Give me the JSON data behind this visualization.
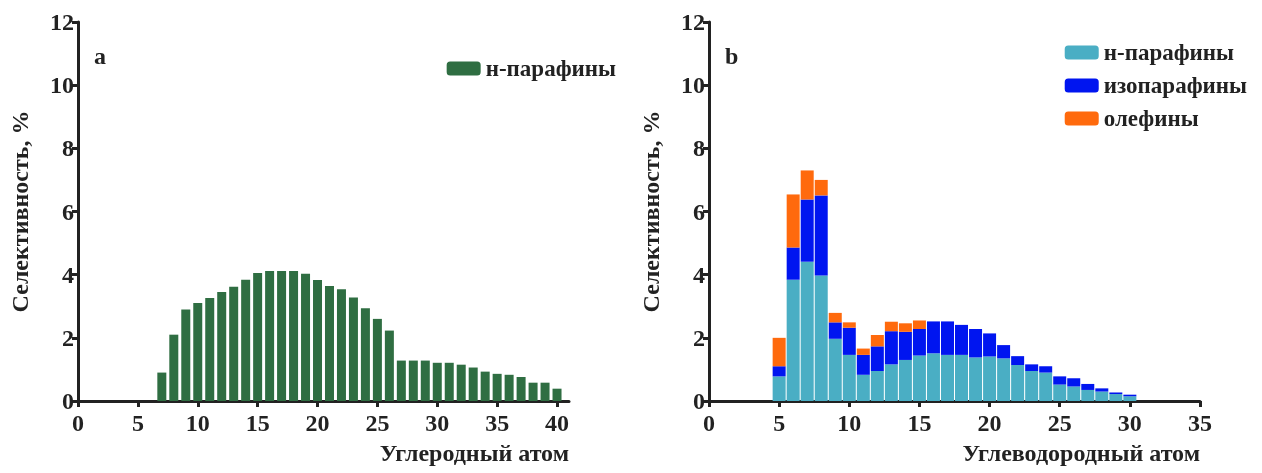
{
  "chart_data": [
    {
      "type": "bar",
      "xlabel": "Углеродный атом",
      "ylabel": "Селективность, %",
      "annotations": [
        "a"
      ],
      "xlim": [
        0,
        41
      ],
      "xticks": [
        0,
        5,
        10,
        15,
        20,
        25,
        30,
        35,
        40
      ],
      "ylim": [
        0,
        12
      ],
      "yticks": [
        0,
        2,
        4,
        6,
        8,
        10,
        12
      ],
      "legend": "top right",
      "grid": false,
      "x": [
        7,
        8,
        9,
        10,
        11,
        12,
        13,
        14,
        15,
        16,
        17,
        18,
        19,
        20,
        21,
        22,
        23,
        24,
        25,
        26,
        27,
        28,
        29,
        30,
        31,
        32,
        33,
        34,
        35,
        36,
        37,
        38,
        39,
        40
      ],
      "series": [
        {
          "name": "н-парафины",
          "color": "#2f6e42",
          "values": [
            0.9,
            2.1,
            2.9,
            3.1,
            3.26,
            3.45,
            3.62,
            3.84,
            4.05,
            4.12,
            4.12,
            4.12,
            4.03,
            3.83,
            3.64,
            3.54,
            3.28,
            2.94,
            2.6,
            2.23,
            1.28,
            1.28,
            1.28,
            1.21,
            1.21,
            1.15,
            1.06,
            0.93,
            0.86,
            0.83,
            0.76,
            0.58,
            0.58,
            0.39
          ]
        }
      ]
    },
    {
      "type": "bar",
      "stacked": true,
      "xlabel": "Углеводородный атом",
      "ylabel": "Селективность, %",
      "annotations": [
        "b"
      ],
      "xlim": [
        0,
        35
      ],
      "xticks": [
        0,
        5,
        10,
        15,
        20,
        25,
        30,
        35
      ],
      "ylim": [
        0,
        12
      ],
      "yticks": [
        0,
        2,
        4,
        6,
        8,
        10,
        12
      ],
      "legend": "top right",
      "grid": false,
      "x": [
        5,
        6,
        7,
        8,
        9,
        10,
        11,
        12,
        13,
        14,
        15,
        16,
        17,
        18,
        19,
        20,
        21,
        22,
        23,
        24,
        25,
        26,
        27,
        28,
        29,
        30
      ],
      "series": [
        {
          "name": "н-парафины",
          "color": "#4aaec4",
          "values": [
            0.78,
            3.84,
            4.41,
            3.97,
            1.97,
            1.46,
            0.83,
            0.95,
            1.16,
            1.3,
            1.44,
            1.51,
            1.46,
            1.46,
            1.38,
            1.41,
            1.35,
            1.14,
            0.95,
            0.9,
            0.52,
            0.46,
            0.35,
            0.3,
            0.22,
            0.15
          ]
        },
        {
          "name": "изопарафины",
          "color": "#0015f0",
          "values": [
            0.32,
            1.02,
            1.97,
            2.54,
            0.52,
            0.86,
            0.63,
            0.78,
            1.05,
            0.89,
            0.84,
            1.01,
            1.06,
            0.95,
            0.9,
            0.73,
            0.42,
            0.28,
            0.21,
            0.2,
            0.26,
            0.26,
            0.19,
            0.1,
            0.05,
            0.05
          ]
        },
        {
          "name": "олефины",
          "color": "#ff6a0d",
          "values": [
            0.9,
            1.68,
            0.92,
            0.49,
            0.3,
            0.17,
            0.2,
            0.36,
            0.3,
            0.27,
            0.27,
            null,
            null,
            null,
            null,
            null,
            null,
            null,
            null,
            null,
            null,
            null,
            null,
            null,
            null,
            null
          ]
        }
      ]
    }
  ]
}
